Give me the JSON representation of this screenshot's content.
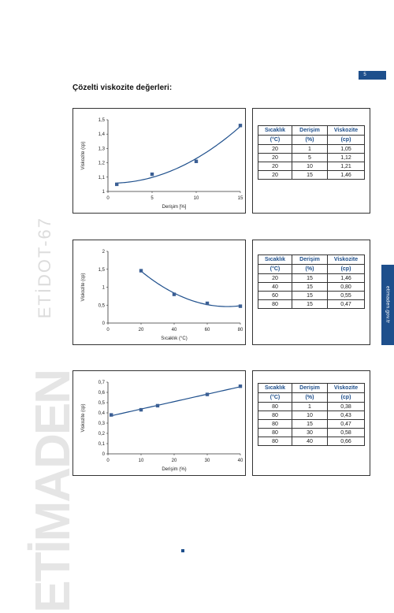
{
  "page": {
    "number": "5",
    "title": "Çözelti viskozite değerleri:",
    "side_tab": "etimaden.gov.tr",
    "brand_mark": "ETİMADEN",
    "brand_sub": "ETİDOT-67",
    "accent_color": "#1e4f8c",
    "marker_color": "#3b5f94"
  },
  "tables": [
    {
      "headers": [
        [
          "Sıcaklık",
          "(°C)"
        ],
        [
          "Derişim",
          "(%)"
        ],
        [
          "Viskozite",
          "(cp)"
        ]
      ],
      "rows": [
        [
          "20",
          "1",
          "1,05"
        ],
        [
          "20",
          "5",
          "1,12"
        ],
        [
          "20",
          "10",
          "1,21"
        ],
        [
          "20",
          "15",
          "1,46"
        ]
      ]
    },
    {
      "headers": [
        [
          "Sıcaklık",
          "(°C)"
        ],
        [
          "Derişim",
          "(%)"
        ],
        [
          "Viskozite",
          "(cp)"
        ]
      ],
      "rows": [
        [
          "20",
          "15",
          "1,46"
        ],
        [
          "40",
          "15",
          "0,80"
        ],
        [
          "60",
          "15",
          "0,55"
        ],
        [
          "80",
          "15",
          "0,47"
        ]
      ]
    },
    {
      "headers": [
        [
          "Sıcaklık",
          "(°C)"
        ],
        [
          "Derişim",
          "(%)"
        ],
        [
          "Viskozite",
          "(cp)"
        ]
      ],
      "rows": [
        [
          "80",
          "1",
          "0,38"
        ],
        [
          "80",
          "10",
          "0,43"
        ],
        [
          "80",
          "15",
          "0,47"
        ],
        [
          "80",
          "30",
          "0,58"
        ],
        [
          "80",
          "40",
          "0,66"
        ]
      ]
    }
  ],
  "chart_data": [
    {
      "type": "scatter",
      "trendline": "polynomial",
      "xlabel": "Derişim [%]",
      "ylabel": "Viskozite (cp)",
      "x": [
        1,
        5,
        10,
        15
      ],
      "y": [
        1.05,
        1.12,
        1.21,
        1.46
      ],
      "xlim": [
        0,
        15
      ],
      "ylim": [
        1,
        1.5
      ],
      "xticks": [
        0,
        5,
        10,
        15
      ],
      "yticks": [
        1,
        1.1,
        1.2,
        1.3,
        1.4,
        1.5
      ],
      "xtick_labels": [
        "0",
        "5",
        "10",
        "15"
      ],
      "ytick_labels": [
        "1",
        "1,1",
        "1,2",
        "1,3",
        "1,4",
        "1,5"
      ],
      "grid": false
    },
    {
      "type": "scatter",
      "trendline": "polynomial",
      "xlabel": "Sıcaklık (°C)",
      "ylabel": "Viskozite (cp)",
      "x": [
        20,
        40,
        60,
        80
      ],
      "y": [
        1.46,
        0.8,
        0.55,
        0.47
      ],
      "xlim": [
        0,
        80
      ],
      "ylim": [
        0,
        2
      ],
      "xticks": [
        0,
        20,
        40,
        60,
        80
      ],
      "yticks": [
        0,
        0.5,
        1,
        1.5,
        2
      ],
      "xtick_labels": [
        "0",
        "20",
        "40",
        "60",
        "80"
      ],
      "ytick_labels": [
        "0",
        "0,5",
        "1",
        "1,5",
        "2"
      ],
      "grid": false
    },
    {
      "type": "scatter",
      "trendline": "linear",
      "xlabel": "Derişim (%)",
      "ylabel": "Viskozite (cp)",
      "x": [
        1,
        10,
        15,
        30,
        40
      ],
      "y": [
        0.38,
        0.43,
        0.47,
        0.58,
        0.66
      ],
      "xlim": [
        0,
        40
      ],
      "ylim": [
        0,
        0.7
      ],
      "xticks": [
        0,
        10,
        20,
        30,
        40
      ],
      "yticks": [
        0,
        0.1,
        0.2,
        0.3,
        0.4,
        0.5,
        0.6,
        0.7
      ],
      "xtick_labels": [
        "0",
        "10",
        "20",
        "30",
        "40"
      ],
      "ytick_labels": [
        "0",
        "0,1",
        "0,2",
        "0,3",
        "0,4",
        "0,5",
        "0,6",
        "0,7"
      ],
      "grid": false
    }
  ]
}
